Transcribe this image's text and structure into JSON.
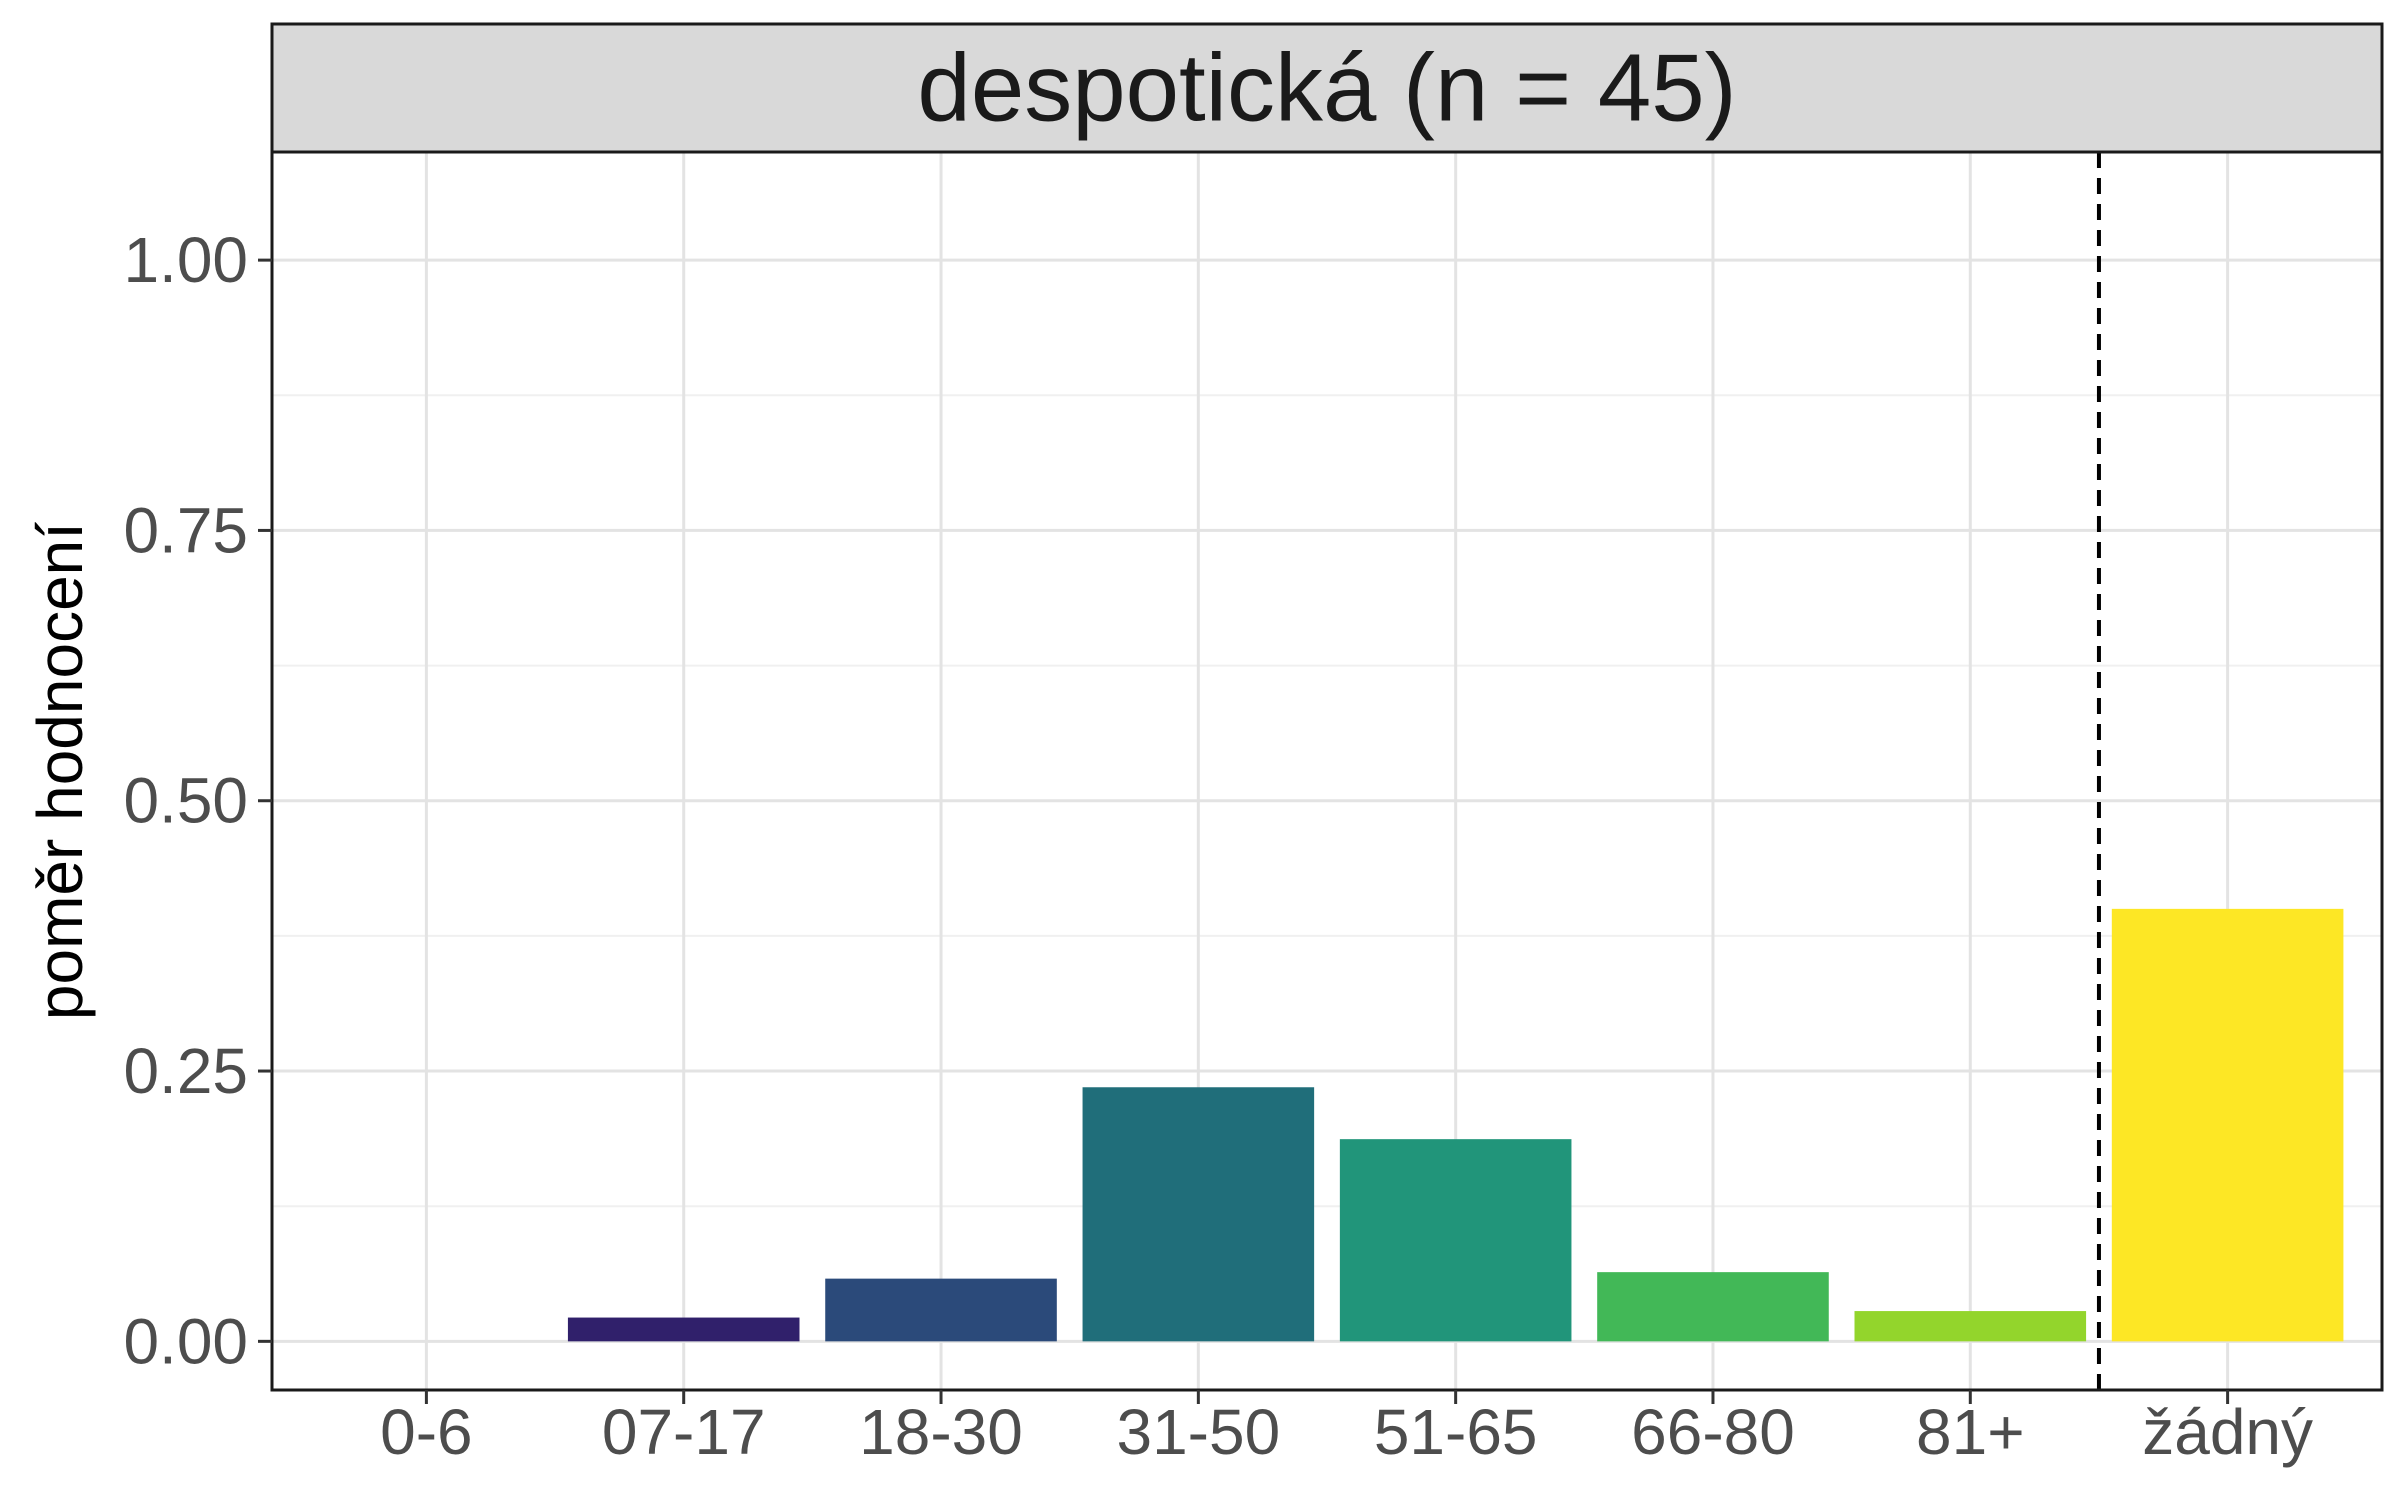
{
  "chart_data": {
    "type": "bar",
    "facet_title": "despotická (n = 45)",
    "ylabel": "poměr hodnocení",
    "xlabel": "",
    "categories": [
      "0-6",
      "07-17",
      "18-30",
      "31-50",
      "51-65",
      "66-80",
      "81+",
      "žádný"
    ],
    "values": [
      0.0,
      0.022,
      0.058,
      0.235,
      0.187,
      0.064,
      0.028,
      0.4
    ],
    "bar_colors": [
      "#440154",
      "#30206B",
      "#2B4A7A",
      "#206E7A",
      "#21957A",
      "#42B857",
      "#93D52C",
      "#FDE725"
    ],
    "ylim": [
      -0.045,
      1.1
    ],
    "yticks": [
      0.0,
      0.25,
      0.5,
      0.75,
      1.0
    ],
    "ytick_labels": [
      "0.00",
      "0.25",
      "0.50",
      "0.75",
      "1.00"
    ],
    "separator": {
      "style": "dashed",
      "between": [
        "81+",
        "žádný"
      ]
    },
    "grid": true,
    "legend": "none"
  }
}
